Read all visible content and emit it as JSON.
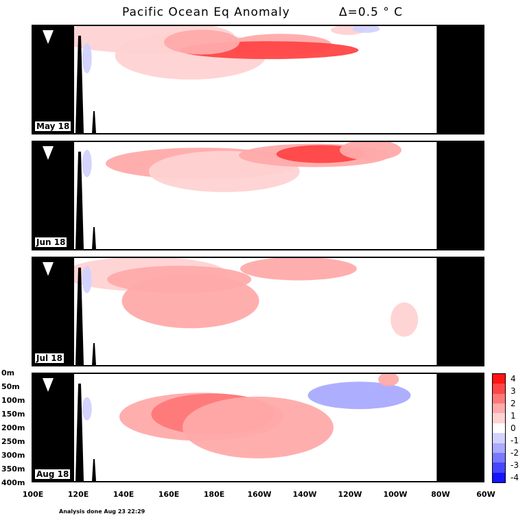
{
  "title": {
    "main": "Pacific Ocean Eq Anomaly",
    "delta": "Δ=0.5 ° C"
  },
  "chart_data": {
    "type": "heatmap",
    "panels": [
      {
        "label": "May 18",
        "patches": [
          {
            "lon": 150,
            "depth": 40,
            "value": 0.5
          },
          {
            "lon": 170,
            "depth": 110,
            "value": 0.5
          },
          {
            "lon": 210,
            "depth": 70,
            "value": 1.5
          },
          {
            "lon": 205,
            "depth": 90,
            "value": 2.5
          },
          {
            "lon": 175,
            "depth": 60,
            "value": 1.0
          },
          {
            "lon": 240,
            "depth": 15,
            "value": 0.5
          },
          {
            "lon": 248,
            "depth": 10,
            "value": -0.5
          },
          {
            "lon": 124,
            "depth": 120,
            "value": -0.5
          }
        ]
      },
      {
        "label": "Jun 18",
        "patches": [
          {
            "lon": 175,
            "depth": 80,
            "value": 1.0
          },
          {
            "lon": 185,
            "depth": 110,
            "value": 0.5
          },
          {
            "lon": 225,
            "depth": 50,
            "value": 1.5
          },
          {
            "lon": 228,
            "depth": 45,
            "value": 2.5
          },
          {
            "lon": 250,
            "depth": 30,
            "value": 1.0
          },
          {
            "lon": 124,
            "depth": 80,
            "value": -0.5
          }
        ]
      },
      {
        "label": "Jul 18",
        "patches": [
          {
            "lon": 150,
            "depth": 60,
            "value": 0.5
          },
          {
            "lon": 170,
            "depth": 160,
            "value": 1.0
          },
          {
            "lon": 165,
            "depth": 80,
            "value": 1.0
          },
          {
            "lon": 218,
            "depth": 40,
            "value": 1.5
          },
          {
            "lon": 265,
            "depth": 230,
            "value": 0.5
          },
          {
            "lon": 124,
            "depth": 80,
            "value": -0.5
          }
        ]
      },
      {
        "label": "Aug 18",
        "patches": [
          {
            "lon": 175,
            "depth": 160,
            "value": 1.0
          },
          {
            "lon": 180,
            "depth": 150,
            "value": 2.0
          },
          {
            "lon": 200,
            "depth": 200,
            "value": 1.0
          },
          {
            "lon": 245,
            "depth": 80,
            "value": -1.0
          },
          {
            "lon": 258,
            "depth": 20,
            "value": 1.5
          },
          {
            "lon": 124,
            "depth": 130,
            "value": -0.5
          }
        ]
      }
    ],
    "xaxis": {
      "range": [
        100,
        300
      ],
      "tick_labels": [
        "100E",
        "120E",
        "140E",
        "160E",
        "180E",
        "160W",
        "140W",
        "120W",
        "100W",
        "80W",
        "60W"
      ]
    },
    "yaxis": {
      "range": [
        0,
        400
      ],
      "tick_labels": [
        "0m",
        "50m",
        "100m",
        "150m",
        "200m",
        "250m",
        "300m",
        "350m",
        "400m"
      ]
    },
    "colorbar": {
      "labels": [
        "4",
        "3",
        "2",
        "1",
        "0",
        "-1",
        "-2",
        "-3",
        "-4"
      ],
      "colors": [
        "#ff1414",
        "#ff4646",
        "#ff7878",
        "#ffaaaa",
        "#ffd2d2",
        "#ffffff",
        "#d2d2ff",
        "#aaaaff",
        "#7878ff",
        "#4646ff",
        "#1414ff"
      ]
    },
    "land_color": "#000000"
  },
  "footer": {
    "analysis": "Analysis done Aug 23 22:29"
  }
}
